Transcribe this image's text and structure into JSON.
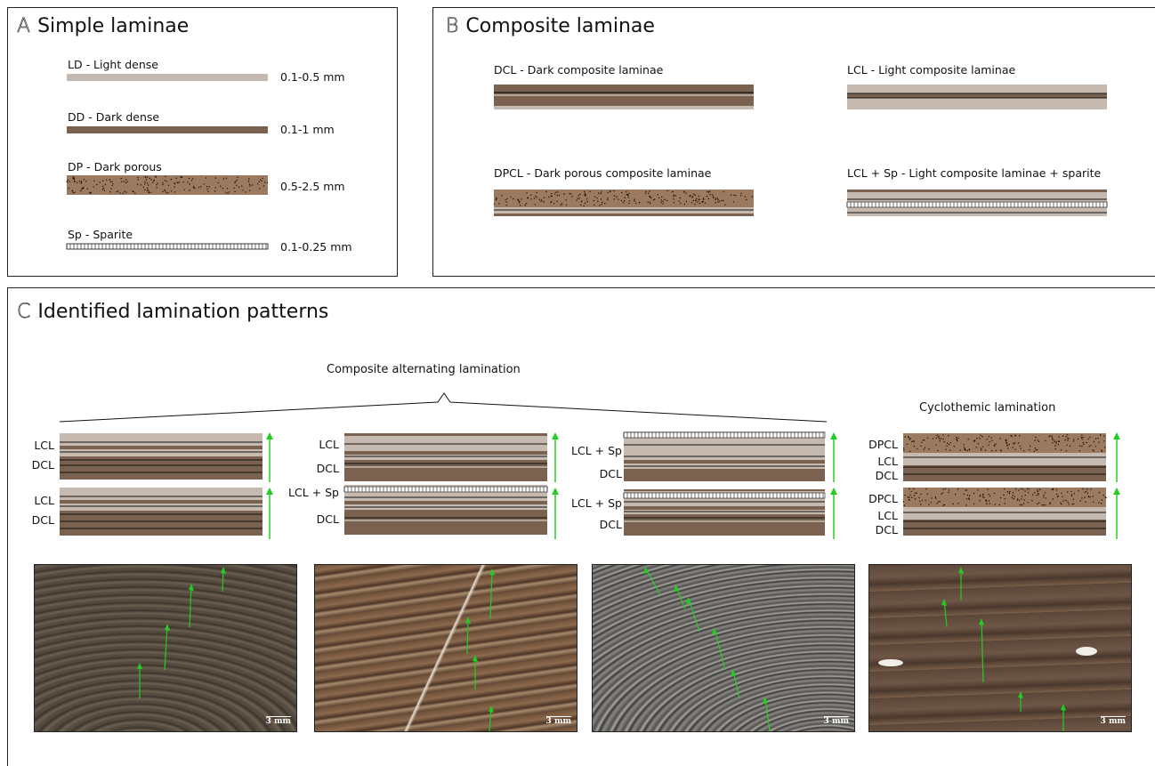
{
  "panel_a": {
    "letter": "A",
    "title": "Simple laminae",
    "items": [
      {
        "name": "LD - Light dense",
        "size": "0.1-0.5 mm"
      },
      {
        "name": "DD - Dark dense",
        "size": "0.1-1 mm"
      },
      {
        "name": "DP - Dark porous",
        "size": "0.5-2.5 mm"
      },
      {
        "name": "Sp - Sparite",
        "size": "0.1-0.25 mm"
      }
    ]
  },
  "panel_b": {
    "letter": "B",
    "title": "Composite laminae",
    "items": [
      {
        "name": "DCL - Dark composite laminae"
      },
      {
        "name": "LCL - Light composite laminae"
      },
      {
        "name": "DPCL - Dark porous composite laminae"
      },
      {
        "name": "LCL + Sp - Light composite laminae + sparite"
      }
    ]
  },
  "panel_c": {
    "letter": "C",
    "title": "Identified lamination patterns",
    "group1_title": "Composite alternating lamination",
    "group2_title": "Cyclothemic lamination",
    "columns": [
      {
        "labels": [
          "LCL",
          "DCL",
          "LCL",
          "DCL"
        ]
      },
      {
        "labels": [
          "LCL",
          "DCL",
          "LCL + Sp",
          "DCL"
        ]
      },
      {
        "labels": [
          "LCL + Sp",
          "DCL",
          "LCL + Sp",
          "DCL"
        ]
      },
      {
        "labels": [
          "DPCL",
          "LCL",
          "DCL",
          "DPCL",
          "LCL",
          "DCL"
        ]
      }
    ],
    "scale_label": "3 mm"
  },
  "colors": {
    "light": "#c6b9af",
    "dark": "#7b6250",
    "porous": "#9b7a5f",
    "arrow": "#22cc22"
  }
}
